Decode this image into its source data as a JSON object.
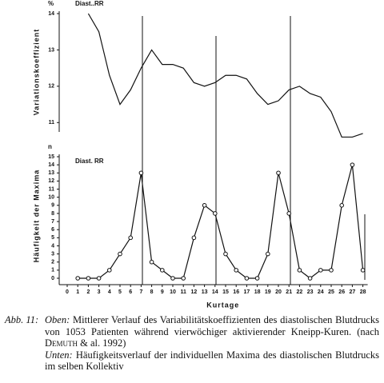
{
  "chart_data": [
    {
      "type": "line",
      "title": "Diast..RR",
      "unit": "%",
      "ylabel": "Variationskoeffizient",
      "x": [
        2,
        3,
        4,
        5,
        6,
        7,
        8,
        9,
        10,
        11,
        12,
        13,
        14,
        15,
        16,
        17,
        18,
        19,
        20,
        21,
        22,
        23,
        24,
        25,
        26,
        27,
        28
      ],
      "values": [
        14.0,
        13.5,
        12.3,
        11.5,
        11.9,
        12.5,
        13.0,
        12.6,
        12.6,
        12.5,
        12.1,
        12.0,
        12.1,
        12.3,
        12.3,
        12.2,
        11.8,
        11.5,
        11.6,
        11.9,
        12.0,
        11.8,
        11.7,
        11.3,
        10.6,
        10.6,
        10.7
      ],
      "color": "#111111",
      "markers": false,
      "xlim": [
        0,
        28
      ],
      "ylim": [
        10.5,
        14
      ],
      "yticks": [
        11,
        12,
        13,
        14
      ]
    },
    {
      "type": "line",
      "title": "Diast. RR",
      "unit": "n",
      "ylabel": "Häufigkeit der Maxima",
      "xlabel": "Kurtage",
      "x": [
        1,
        2,
        3,
        4,
        5,
        6,
        7,
        8,
        9,
        10,
        11,
        12,
        13,
        14,
        15,
        16,
        17,
        18,
        19,
        20,
        21,
        22,
        23,
        24,
        25,
        26,
        27,
        28
      ],
      "values": [
        0,
        0,
        0,
        1,
        3,
        5,
        13,
        2,
        1,
        0,
        0,
        5,
        9,
        8,
        3,
        1,
        0,
        0,
        3,
        13,
        8,
        1,
        0,
        1,
        1,
        9,
        14,
        1
      ],
      "color": "#111111",
      "markers": true,
      "xlim": [
        0,
        28
      ],
      "xticks": [
        0,
        1,
        2,
        3,
        4,
        5,
        6,
        7,
        8,
        9,
        10,
        11,
        12,
        13,
        14,
        15,
        16,
        17,
        18,
        19,
        20,
        21,
        22,
        23,
        24,
        25,
        26,
        27,
        28
      ],
      "ylim": [
        0,
        15
      ],
      "yticks": [
        0,
        1,
        2,
        3,
        4,
        5,
        6,
        7,
        8,
        9,
        10,
        11,
        12,
        13,
        14,
        15
      ]
    }
  ],
  "caption": {
    "label": "Abb. 11:",
    "parts": [
      {
        "lead": "Oben:",
        "text": "Mittlerer Verlauf des Variabilitätskoeffizienten des diastolischen Blutdrucks von 1053 Patienten während vierwöchiger aktivierender Kneipp-Kuren. (nach",
        "author": "Demuth",
        "tail": "& al. 1992)"
      },
      {
        "lead": "Unten:",
        "text": "Häufigkeitsverlauf der individuellen Maxima des diastolischen Blutdrucks im selben Kollektiv"
      }
    ]
  }
}
